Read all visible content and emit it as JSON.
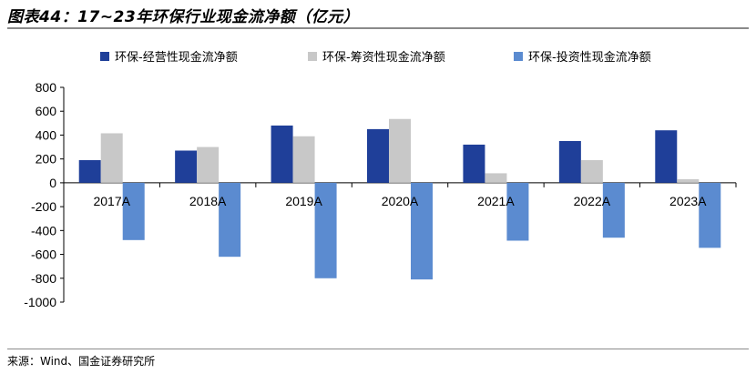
{
  "title": "图表44：17~23年环保行业现金流净额（亿元）",
  "source": "来源：Wind、国金证券研究所",
  "colors": {
    "operating": "#1f3f99",
    "financing": "#c8c8c8",
    "investing": "#5b8bd0",
    "axis": "#000000"
  },
  "chart_data": {
    "type": "bar",
    "categories": [
      "2017A",
      "2018A",
      "2019A",
      "2020A",
      "2021A",
      "2022A",
      "2023A"
    ],
    "series": [
      {
        "name": "环保-经营性现金流净额",
        "values": [
          190,
          270,
          480,
          450,
          320,
          350,
          440
        ]
      },
      {
        "name": "环保-筹资性现金流净额",
        "values": [
          415,
          300,
          390,
          535,
          80,
          190,
          30
        ]
      },
      {
        "name": "环保-投资性现金流净额",
        "values": [
          -480,
          -620,
          -800,
          -810,
          -485,
          -460,
          -545
        ]
      }
    ],
    "yticks": [
      "800",
      "600",
      "400",
      "200",
      "0",
      "-200",
      "-400",
      "-600",
      "-800",
      "-1000"
    ],
    "ylim": [
      -1000,
      800
    ],
    "legend_position": "top",
    "grid": false
  }
}
